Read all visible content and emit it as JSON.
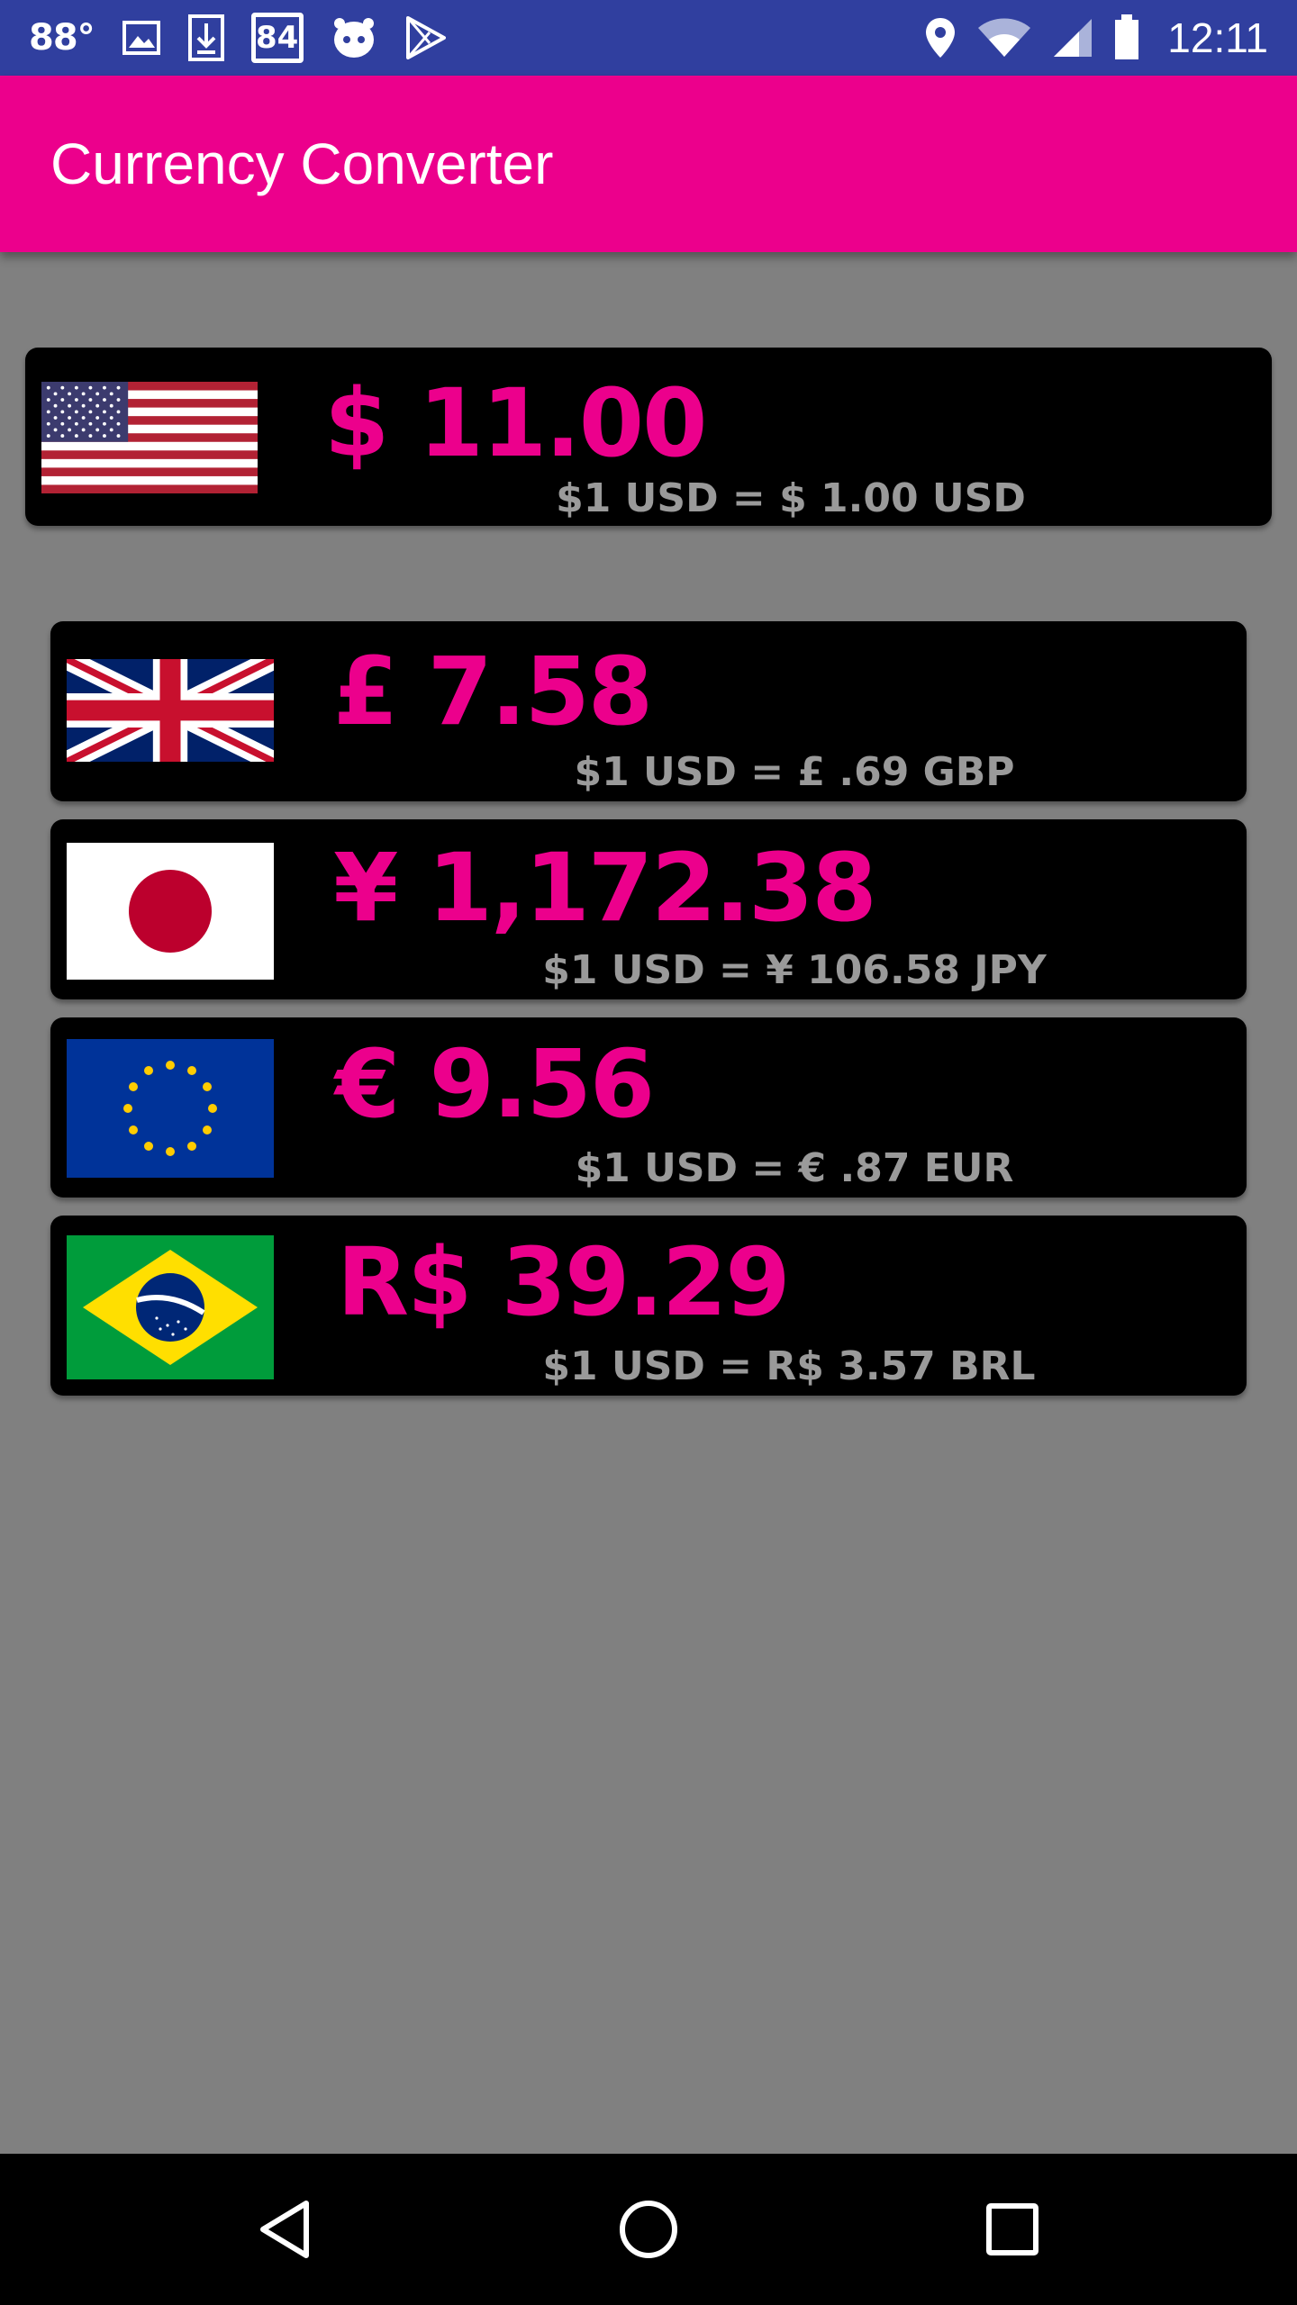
{
  "status_bar": {
    "temperature": "88°",
    "badge_number": "84",
    "time": "12:11",
    "icons_left": [
      "image-icon",
      "download-icon",
      "calendar-badge-icon",
      "alien-icon",
      "play-store-icon"
    ],
    "icons_right": [
      "location-icon",
      "wifi-icon",
      "signal-icon",
      "battery-icon"
    ]
  },
  "app_bar": {
    "title": "Currency Converter",
    "color": "#EC008C"
  },
  "base_currency": {
    "code": "USD",
    "flag": "us-flag-icon",
    "amount": "$ 11.00",
    "rate": "$1 USD = $ 1.00 USD"
  },
  "conversions": [
    {
      "code": "GBP",
      "flag": "uk-flag-icon",
      "amount": "£ 7.58",
      "rate": "$1 USD = £ .69 GBP"
    },
    {
      "code": "JPY",
      "flag": "japan-flag-icon",
      "amount": "¥ 1,172.38",
      "rate": "$1 USD = ¥ 106.58 JPY"
    },
    {
      "code": "EUR",
      "flag": "eu-flag-icon",
      "amount": "€ 9.56",
      "rate": "$1 USD = € .87 EUR"
    },
    {
      "code": "BRL",
      "flag": "brazil-flag-icon",
      "amount": "R$ 39.29",
      "rate": "$1 USD = R$ 3.57 BRL"
    }
  ],
  "nav_bar": {
    "buttons": [
      "back-icon",
      "home-icon",
      "recents-icon"
    ]
  },
  "colors": {
    "status_bar": "#303F9F",
    "accent": "#EC008C",
    "background": "#808080",
    "card": "#000000",
    "rate_text": "#9A9A9A"
  }
}
